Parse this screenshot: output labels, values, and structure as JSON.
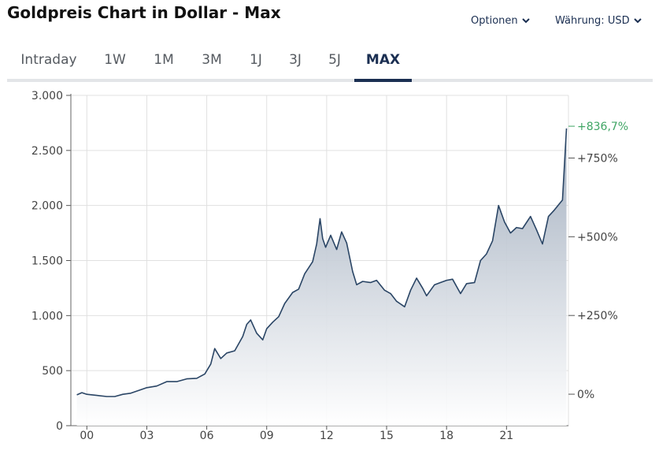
{
  "header": {
    "title": "Goldpreis Chart in Dollar - Max",
    "options_label": "Optionen",
    "currency_label": "Währung: USD"
  },
  "tabs": [
    {
      "label": "Intraday",
      "active": false
    },
    {
      "label": "1W",
      "active": false
    },
    {
      "label": "1M",
      "active": false
    },
    {
      "label": "3M",
      "active": false
    },
    {
      "label": "1J",
      "active": false
    },
    {
      "label": "3J",
      "active": false
    },
    {
      "label": "5J",
      "active": false
    },
    {
      "label": "MAX",
      "active": true
    }
  ],
  "colors": {
    "line": "#2a4565",
    "fill_top": "#9daabb",
    "fill_bottom": "#ffffff",
    "accent": "#1b2f52",
    "positive": "#3fa564",
    "grid": "#e0e0e0"
  },
  "chart_data": {
    "type": "area",
    "title": "",
    "xlabel": "",
    "ylabel": "",
    "x_tick_labels": [
      "00",
      "03",
      "06",
      "09",
      "12",
      "15",
      "18",
      "21"
    ],
    "x_ticks": [
      2000,
      2003,
      2006,
      2009,
      2012,
      2015,
      2018,
      2021
    ],
    "xlim": [
      1999.2,
      2024.1
    ],
    "ylim": [
      0,
      3000
    ],
    "y_ticks": [
      0,
      500,
      1000,
      1500,
      2000,
      2500,
      3000
    ],
    "y_tick_labels": [
      "0",
      "500",
      "1.000",
      "1.500",
      "2.000",
      "2.500",
      "3.000"
    ],
    "right_axis": {
      "base_value": 286,
      "ticks": [
        0,
        250,
        500,
        750
      ],
      "tick_labels": [
        "0%",
        "+250%",
        "+500%",
        "+750%"
      ],
      "last_change_label": "+836,7%"
    },
    "grid": true,
    "series": [
      {
        "x": [
          1999.5,
          1999.75,
          2000.0,
          2000.5,
          2001.0,
          2001.4,
          2001.8,
          2002.2,
          2002.6,
          2003.0,
          2003.5,
          2004.0,
          2004.5,
          2005.0,
          2005.5,
          2005.9,
          2006.2,
          2006.4,
          2006.7,
          2007.0,
          2007.4,
          2007.8,
          2008.0,
          2008.2,
          2008.5,
          2008.8,
          2009.0,
          2009.3,
          2009.6,
          2009.9,
          2010.3,
          2010.6,
          2010.9,
          2011.3,
          2011.5,
          2011.67,
          2011.8,
          2011.95,
          2012.2,
          2012.5,
          2012.75,
          2013.0,
          2013.3,
          2013.5,
          2013.8,
          2014.2,
          2014.5,
          2014.9,
          2015.2,
          2015.5,
          2015.9,
          2016.2,
          2016.5,
          2016.8,
          2017.0,
          2017.4,
          2017.7,
          2018.0,
          2018.3,
          2018.7,
          2019.0,
          2019.4,
          2019.7,
          2020.0,
          2020.3,
          2020.6,
          2020.9,
          2021.2,
          2021.5,
          2021.8,
          2022.2,
          2022.5,
          2022.8,
          2023.1,
          2023.4,
          2023.8,
          2024.0
        ],
        "y": [
          280,
          300,
          285,
          275,
          265,
          265,
          285,
          295,
          320,
          345,
          360,
          400,
          400,
          425,
          430,
          470,
          560,
          700,
          610,
          660,
          680,
          810,
          920,
          960,
          840,
          780,
          880,
          940,
          990,
          1110,
          1210,
          1240,
          1380,
          1490,
          1650,
          1880,
          1700,
          1620,
          1730,
          1600,
          1760,
          1660,
          1400,
          1280,
          1310,
          1300,
          1320,
          1230,
          1200,
          1130,
          1080,
          1230,
          1340,
          1250,
          1180,
          1280,
          1300,
          1320,
          1330,
          1200,
          1290,
          1300,
          1500,
          1560,
          1680,
          2000,
          1850,
          1750,
          1800,
          1790,
          1900,
          1780,
          1650,
          1900,
          1960,
          2050,
          2700
        ]
      }
    ]
  }
}
